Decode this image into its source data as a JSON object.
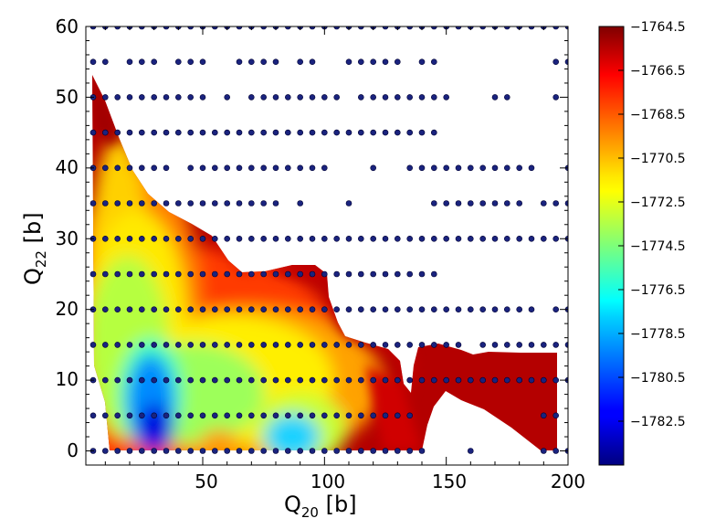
{
  "chart_data": {
    "type": "contour",
    "xlabel": "Q",
    "xlabel_sub": "20",
    "xlabel_unit": " [b]",
    "ylabel": "Q",
    "ylabel_sub": "22",
    "ylabel_unit": " [b]",
    "xlim": [
      2,
      200
    ],
    "ylim": [
      -2,
      60
    ],
    "xticks": [
      50,
      100,
      150,
      200
    ],
    "xtick_labels": [
      "50",
      "100",
      "150",
      "200"
    ],
    "yticks": [
      0,
      10,
      20,
      30,
      40,
      50,
      60
    ],
    "ytick_labels": [
      "0",
      "10",
      "20",
      "30",
      "40",
      "50",
      "60"
    ],
    "colorbar": {
      "colormap": "jet",
      "range": [
        -1784.5,
        -1764.5
      ],
      "ticks": [
        -1764.5,
        -1766.5,
        -1768.5,
        -1770.5,
        -1772.5,
        -1774.5,
        -1776.5,
        -1778.5,
        -1780.5,
        -1782.5
      ],
      "tick_labels": [
        "−1764.5",
        "−1766.5",
        "−1768.5",
        "−1770.5",
        "−1772.5",
        "−1774.5",
        "−1776.5",
        "−1778.5",
        "−1780.5",
        "−1782.5"
      ]
    },
    "minima": [
      {
        "x": 30,
        "y": 3,
        "value": -1784.0
      },
      {
        "x": 86,
        "y": 1,
        "value": -1779.0
      },
      {
        "x": 55,
        "y": 1,
        "value": -1774.0
      }
    ],
    "point_color": "#1a237e",
    "calculated_points": [
      [
        5,
        60
      ],
      [
        10,
        60
      ],
      [
        15,
        60
      ],
      [
        20,
        60
      ],
      [
        25,
        60
      ],
      [
        30,
        60
      ],
      [
        35,
        60
      ],
      [
        40,
        60
      ],
      [
        45,
        60
      ],
      [
        50,
        60
      ],
      [
        55,
        60
      ],
      [
        60,
        60
      ],
      [
        65,
        60
      ],
      [
        70,
        60
      ],
      [
        75,
        60
      ],
      [
        80,
        60
      ],
      [
        85,
        60
      ],
      [
        90,
        60
      ],
      [
        95,
        60
      ],
      [
        100,
        60
      ],
      [
        105,
        60
      ],
      [
        110,
        60
      ],
      [
        115,
        60
      ],
      [
        120,
        60
      ],
      [
        125,
        60
      ],
      [
        130,
        60
      ],
      [
        135,
        60
      ],
      [
        140,
        60
      ],
      [
        145,
        60
      ],
      [
        150,
        60
      ],
      [
        155,
        60
      ],
      [
        160,
        60
      ],
      [
        165,
        60
      ],
      [
        170,
        60
      ],
      [
        175,
        60
      ],
      [
        180,
        60
      ],
      [
        185,
        60
      ],
      [
        190,
        60
      ],
      [
        195,
        60
      ],
      [
        200,
        60
      ],
      [
        5,
        55
      ],
      [
        10,
        55
      ],
      [
        20,
        55
      ],
      [
        25,
        55
      ],
      [
        30,
        55
      ],
      [
        40,
        55
      ],
      [
        45,
        55
      ],
      [
        50,
        55
      ],
      [
        65,
        55
      ],
      [
        70,
        55
      ],
      [
        75,
        55
      ],
      [
        80,
        55
      ],
      [
        90,
        55
      ],
      [
        95,
        55
      ],
      [
        110,
        55
      ],
      [
        115,
        55
      ],
      [
        120,
        55
      ],
      [
        125,
        55
      ],
      [
        130,
        55
      ],
      [
        140,
        55
      ],
      [
        145,
        55
      ],
      [
        195,
        55
      ],
      [
        200,
        55
      ],
      [
        5,
        50
      ],
      [
        10,
        50
      ],
      [
        15,
        50
      ],
      [
        20,
        50
      ],
      [
        25,
        50
      ],
      [
        30,
        50
      ],
      [
        35,
        50
      ],
      [
        40,
        50
      ],
      [
        45,
        50
      ],
      [
        50,
        50
      ],
      [
        60,
        50
      ],
      [
        70,
        50
      ],
      [
        75,
        50
      ],
      [
        80,
        50
      ],
      [
        85,
        50
      ],
      [
        90,
        50
      ],
      [
        95,
        50
      ],
      [
        100,
        50
      ],
      [
        105,
        50
      ],
      [
        115,
        50
      ],
      [
        120,
        50
      ],
      [
        125,
        50
      ],
      [
        130,
        50
      ],
      [
        135,
        50
      ],
      [
        140,
        50
      ],
      [
        145,
        50
      ],
      [
        150,
        50
      ],
      [
        170,
        50
      ],
      [
        175,
        50
      ],
      [
        195,
        50
      ],
      [
        5,
        45
      ],
      [
        10,
        45
      ],
      [
        15,
        45
      ],
      [
        20,
        45
      ],
      [
        25,
        45
      ],
      [
        30,
        45
      ],
      [
        35,
        45
      ],
      [
        40,
        45
      ],
      [
        45,
        45
      ],
      [
        50,
        45
      ],
      [
        55,
        45
      ],
      [
        60,
        45
      ],
      [
        65,
        45
      ],
      [
        70,
        45
      ],
      [
        75,
        45
      ],
      [
        80,
        45
      ],
      [
        85,
        45
      ],
      [
        90,
        45
      ],
      [
        95,
        45
      ],
      [
        100,
        45
      ],
      [
        105,
        45
      ],
      [
        110,
        45
      ],
      [
        115,
        45
      ],
      [
        120,
        45
      ],
      [
        125,
        45
      ],
      [
        130,
        45
      ],
      [
        135,
        45
      ],
      [
        140,
        45
      ],
      [
        145,
        45
      ],
      [
        5,
        40
      ],
      [
        10,
        40
      ],
      [
        15,
        40
      ],
      [
        20,
        40
      ],
      [
        25,
        40
      ],
      [
        30,
        40
      ],
      [
        35,
        40
      ],
      [
        45,
        40
      ],
      [
        50,
        40
      ],
      [
        55,
        40
      ],
      [
        60,
        40
      ],
      [
        65,
        40
      ],
      [
        70,
        40
      ],
      [
        75,
        40
      ],
      [
        80,
        40
      ],
      [
        85,
        40
      ],
      [
        90,
        40
      ],
      [
        95,
        40
      ],
      [
        100,
        40
      ],
      [
        120,
        40
      ],
      [
        135,
        40
      ],
      [
        140,
        40
      ],
      [
        145,
        40
      ],
      [
        150,
        40
      ],
      [
        155,
        40
      ],
      [
        160,
        40
      ],
      [
        165,
        40
      ],
      [
        170,
        40
      ],
      [
        175,
        40
      ],
      [
        180,
        40
      ],
      [
        185,
        40
      ],
      [
        200,
        40
      ],
      [
        5,
        35
      ],
      [
        10,
        35
      ],
      [
        15,
        35
      ],
      [
        20,
        35
      ],
      [
        25,
        35
      ],
      [
        30,
        35
      ],
      [
        35,
        35
      ],
      [
        40,
        35
      ],
      [
        45,
        35
      ],
      [
        50,
        35
      ],
      [
        55,
        35
      ],
      [
        60,
        35
      ],
      [
        65,
        35
      ],
      [
        70,
        35
      ],
      [
        75,
        35
      ],
      [
        80,
        35
      ],
      [
        90,
        35
      ],
      [
        110,
        35
      ],
      [
        145,
        35
      ],
      [
        150,
        35
      ],
      [
        155,
        35
      ],
      [
        160,
        35
      ],
      [
        165,
        35
      ],
      [
        170,
        35
      ],
      [
        175,
        35
      ],
      [
        180,
        35
      ],
      [
        190,
        35
      ],
      [
        195,
        35
      ],
      [
        200,
        35
      ],
      [
        5,
        30
      ],
      [
        10,
        30
      ],
      [
        15,
        30
      ],
      [
        20,
        30
      ],
      [
        25,
        30
      ],
      [
        30,
        30
      ],
      [
        35,
        30
      ],
      [
        40,
        30
      ],
      [
        45,
        30
      ],
      [
        50,
        30
      ],
      [
        55,
        30
      ],
      [
        60,
        30
      ],
      [
        65,
        30
      ],
      [
        70,
        30
      ],
      [
        75,
        30
      ],
      [
        80,
        30
      ],
      [
        85,
        30
      ],
      [
        90,
        30
      ],
      [
        95,
        30
      ],
      [
        100,
        30
      ],
      [
        105,
        30
      ],
      [
        110,
        30
      ],
      [
        115,
        30
      ],
      [
        120,
        30
      ],
      [
        125,
        30
      ],
      [
        130,
        30
      ],
      [
        135,
        30
      ],
      [
        140,
        30
      ],
      [
        145,
        30
      ],
      [
        150,
        30
      ],
      [
        155,
        30
      ],
      [
        160,
        30
      ],
      [
        165,
        30
      ],
      [
        170,
        30
      ],
      [
        175,
        30
      ],
      [
        180,
        30
      ],
      [
        185,
        30
      ],
      [
        190,
        30
      ],
      [
        195,
        30
      ],
      [
        200,
        30
      ],
      [
        5,
        25
      ],
      [
        10,
        25
      ],
      [
        15,
        25
      ],
      [
        20,
        25
      ],
      [
        25,
        25
      ],
      [
        30,
        25
      ],
      [
        35,
        25
      ],
      [
        40,
        25
      ],
      [
        45,
        25
      ],
      [
        50,
        25
      ],
      [
        55,
        25
      ],
      [
        60,
        25
      ],
      [
        65,
        25
      ],
      [
        70,
        25
      ],
      [
        75,
        25
      ],
      [
        80,
        25
      ],
      [
        85,
        25
      ],
      [
        90,
        25
      ],
      [
        95,
        25
      ],
      [
        100,
        25
      ],
      [
        105,
        25
      ],
      [
        110,
        25
      ],
      [
        115,
        25
      ],
      [
        120,
        25
      ],
      [
        125,
        25
      ],
      [
        130,
        25
      ],
      [
        135,
        25
      ],
      [
        140,
        25
      ],
      [
        145,
        25
      ],
      [
        5,
        20
      ],
      [
        10,
        20
      ],
      [
        15,
        20
      ],
      [
        20,
        20
      ],
      [
        25,
        20
      ],
      [
        30,
        20
      ],
      [
        35,
        20
      ],
      [
        40,
        20
      ],
      [
        45,
        20
      ],
      [
        50,
        20
      ],
      [
        55,
        20
      ],
      [
        60,
        20
      ],
      [
        65,
        20
      ],
      [
        70,
        20
      ],
      [
        75,
        20
      ],
      [
        80,
        20
      ],
      [
        85,
        20
      ],
      [
        90,
        20
      ],
      [
        95,
        20
      ],
      [
        100,
        20
      ],
      [
        105,
        20
      ],
      [
        110,
        20
      ],
      [
        115,
        20
      ],
      [
        120,
        20
      ],
      [
        125,
        20
      ],
      [
        130,
        20
      ],
      [
        135,
        20
      ],
      [
        140,
        20
      ],
      [
        145,
        20
      ],
      [
        150,
        20
      ],
      [
        155,
        20
      ],
      [
        160,
        20
      ],
      [
        165,
        20
      ],
      [
        170,
        20
      ],
      [
        175,
        20
      ],
      [
        180,
        20
      ],
      [
        185,
        20
      ],
      [
        195,
        20
      ],
      [
        200,
        20
      ],
      [
        5,
        15
      ],
      [
        10,
        15
      ],
      [
        15,
        15
      ],
      [
        20,
        15
      ],
      [
        25,
        15
      ],
      [
        30,
        15
      ],
      [
        35,
        15
      ],
      [
        40,
        15
      ],
      [
        45,
        15
      ],
      [
        50,
        15
      ],
      [
        55,
        15
      ],
      [
        60,
        15
      ],
      [
        65,
        15
      ],
      [
        70,
        15
      ],
      [
        75,
        15
      ],
      [
        80,
        15
      ],
      [
        85,
        15
      ],
      [
        90,
        15
      ],
      [
        95,
        15
      ],
      [
        100,
        15
      ],
      [
        105,
        15
      ],
      [
        110,
        15
      ],
      [
        115,
        15
      ],
      [
        120,
        15
      ],
      [
        125,
        15
      ],
      [
        130,
        15
      ],
      [
        135,
        15
      ],
      [
        140,
        15
      ],
      [
        145,
        15
      ],
      [
        150,
        15
      ],
      [
        155,
        15
      ],
      [
        165,
        15
      ],
      [
        170,
        15
      ],
      [
        175,
        15
      ],
      [
        180,
        15
      ],
      [
        185,
        15
      ],
      [
        190,
        15
      ],
      [
        195,
        15
      ],
      [
        200,
        15
      ],
      [
        5,
        10
      ],
      [
        10,
        10
      ],
      [
        15,
        10
      ],
      [
        20,
        10
      ],
      [
        25,
        10
      ],
      [
        30,
        10
      ],
      [
        35,
        10
      ],
      [
        40,
        10
      ],
      [
        45,
        10
      ],
      [
        50,
        10
      ],
      [
        55,
        10
      ],
      [
        60,
        10
      ],
      [
        65,
        10
      ],
      [
        70,
        10
      ],
      [
        75,
        10
      ],
      [
        80,
        10
      ],
      [
        85,
        10
      ],
      [
        90,
        10
      ],
      [
        95,
        10
      ],
      [
        100,
        10
      ],
      [
        105,
        10
      ],
      [
        110,
        10
      ],
      [
        115,
        10
      ],
      [
        120,
        10
      ],
      [
        125,
        10
      ],
      [
        130,
        10
      ],
      [
        135,
        10
      ],
      [
        140,
        10
      ],
      [
        145,
        10
      ],
      [
        150,
        10
      ],
      [
        155,
        10
      ],
      [
        160,
        10
      ],
      [
        165,
        10
      ],
      [
        170,
        10
      ],
      [
        175,
        10
      ],
      [
        180,
        10
      ],
      [
        185,
        10
      ],
      [
        190,
        10
      ],
      [
        195,
        10
      ],
      [
        200,
        10
      ],
      [
        5,
        5
      ],
      [
        10,
        5
      ],
      [
        15,
        5
      ],
      [
        20,
        5
      ],
      [
        25,
        5
      ],
      [
        30,
        5
      ],
      [
        35,
        5
      ],
      [
        40,
        5
      ],
      [
        45,
        5
      ],
      [
        50,
        5
      ],
      [
        55,
        5
      ],
      [
        60,
        5
      ],
      [
        65,
        5
      ],
      [
        70,
        5
      ],
      [
        75,
        5
      ],
      [
        80,
        5
      ],
      [
        85,
        5
      ],
      [
        90,
        5
      ],
      [
        95,
        5
      ],
      [
        100,
        5
      ],
      [
        105,
        5
      ],
      [
        110,
        5
      ],
      [
        115,
        5
      ],
      [
        120,
        5
      ],
      [
        125,
        5
      ],
      [
        130,
        5
      ],
      [
        135,
        5
      ],
      [
        190,
        5
      ],
      [
        195,
        5
      ],
      [
        5,
        0
      ],
      [
        10,
        0
      ],
      [
        15,
        0
      ],
      [
        20,
        0
      ],
      [
        25,
        0
      ],
      [
        30,
        0
      ],
      [
        35,
        0
      ],
      [
        40,
        0
      ],
      [
        45,
        0
      ],
      [
        50,
        0
      ],
      [
        55,
        0
      ],
      [
        60,
        0
      ],
      [
        65,
        0
      ],
      [
        70,
        0
      ],
      [
        75,
        0
      ],
      [
        80,
        0
      ],
      [
        85,
        0
      ],
      [
        90,
        0
      ],
      [
        95,
        0
      ],
      [
        100,
        0
      ],
      [
        105,
        0
      ],
      [
        110,
        0
      ],
      [
        115,
        0
      ],
      [
        120,
        0
      ],
      [
        125,
        0
      ],
      [
        130,
        0
      ],
      [
        135,
        0
      ],
      [
        140,
        0
      ],
      [
        160,
        0
      ],
      [
        190,
        0
      ],
      [
        195,
        0
      ],
      [
        200,
        0
      ]
    ]
  }
}
